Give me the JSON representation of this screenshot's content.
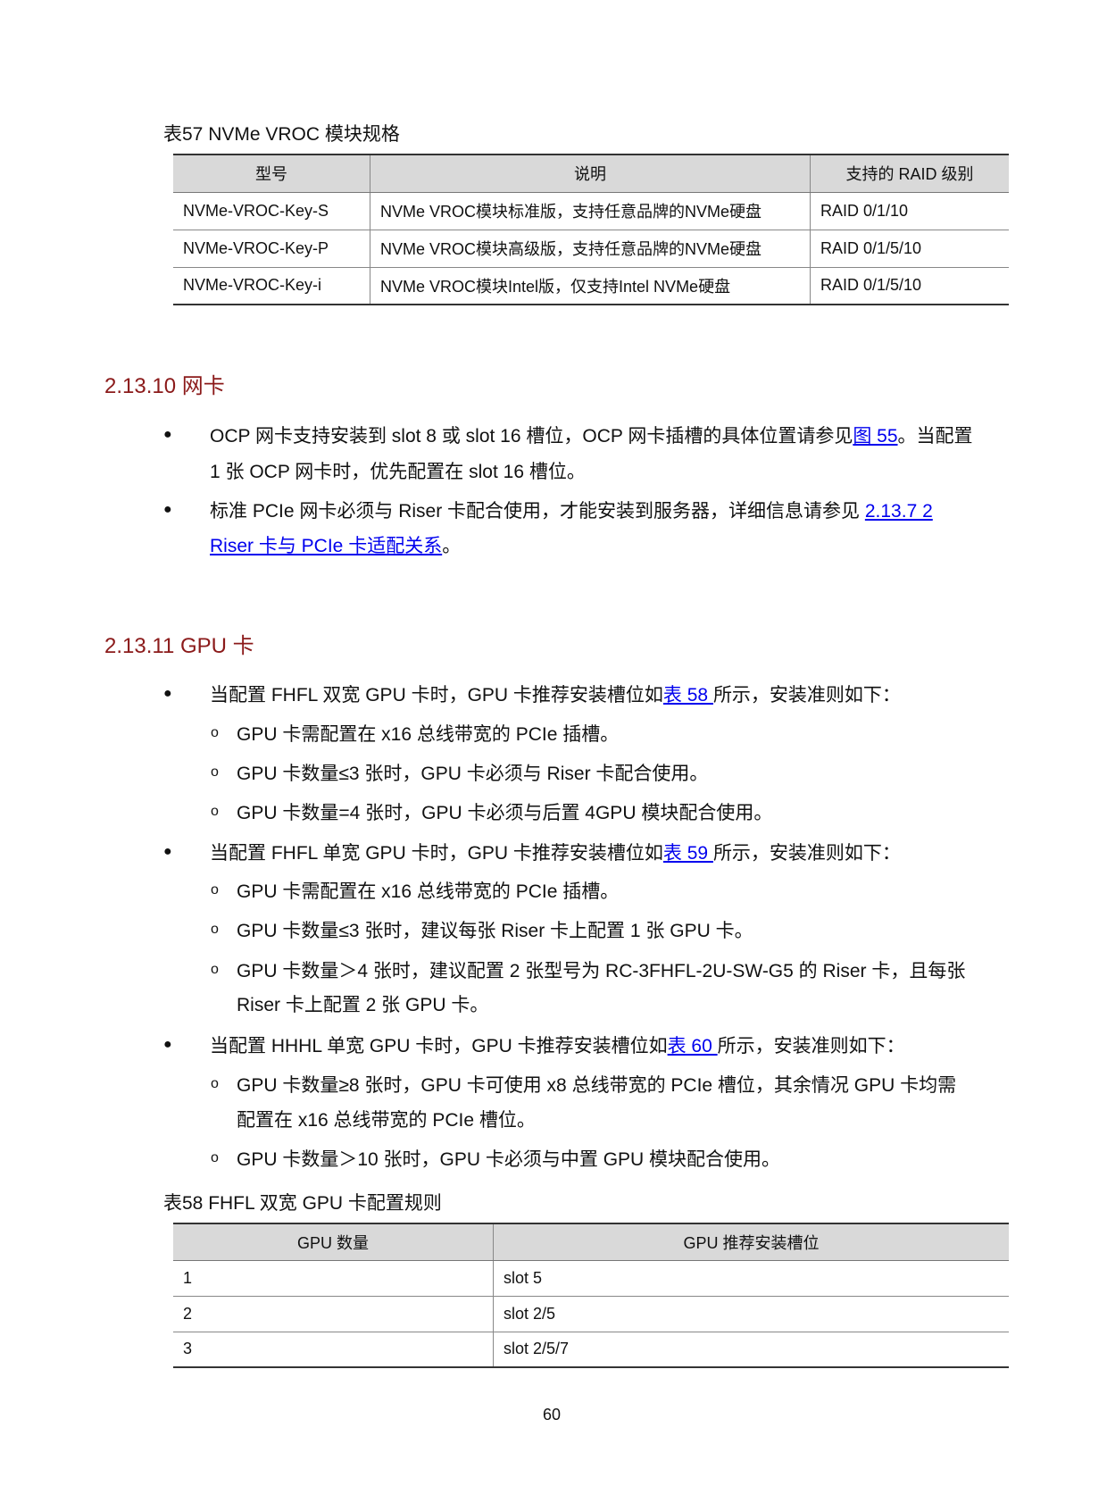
{
  "table57": {
    "caption": "表57  NVMe VROC 模块规格",
    "headers": [
      "型号",
      "说明",
      "支持的 RAID 级别"
    ],
    "rows": [
      [
        "NVMe-VROC-Key-S",
        "NVMe VROC模块标准版，支持任意品牌的NVMe硬盘",
        "RAID 0/1/10"
      ],
      [
        "NVMe-VROC-Key-P",
        "NVMe VROC模块高级版，支持任意品牌的NVMe硬盘",
        "RAID 0/1/5/10"
      ],
      [
        "NVMe-VROC-Key-i",
        "NVMe VROC模块Intel版，仅支持Intel NVMe硬盘",
        "RAID 0/1/5/10"
      ]
    ]
  },
  "sec1": {
    "heading": "2.13.10  网卡",
    "b1": {
      "a": "OCP 网卡支持安装到 slot 8 或 slot 16 槽位，OCP 网卡插槽的具体位置请参见",
      "link": "图 55",
      "b": "。当配置",
      "c": "1 张 OCP 网卡时，优先配置在 slot 16 槽位。"
    },
    "b2": {
      "a": "标准 PCIe 网卡必须与 Riser 卡配合使用，才能安装到服务器，详细信息请参见 ",
      "link1": "2.13.7  2",
      "link2": "Riser 卡与 PCIe 卡适配关系",
      "b": "。"
    }
  },
  "sec2": {
    "heading": "2.13.11  GPU 卡",
    "b1": {
      "a": "当配置 FHFL 双宽 GPU 卡时，GPU 卡推荐安装槽位如",
      "link": "表 58 ",
      "b": "所示，安装准则如下：",
      "subs": [
        "GPU 卡需配置在 x16 总线带宽的 PCIe 插槽。",
        "GPU 卡数量≤3 张时，GPU 卡必须与 Riser 卡配合使用。",
        "GPU 卡数量=4 张时，GPU 卡必须与后置 4GPU 模块配合使用。"
      ]
    },
    "b2": {
      "a": "当配置 FHFL 单宽 GPU 卡时，GPU 卡推荐安装槽位如",
      "link": "表 59 ",
      "b": "所示，安装准则如下：",
      "subs": [
        "GPU 卡需配置在 x16 总线带宽的 PCIe 插槽。",
        "GPU 卡数量≤3 张时，建议每张 Riser 卡上配置 1 张 GPU 卡。",
        "GPU 卡数量＞4 张时，建议配置 2 张型号为 RC-3FHFL-2U-SW-G5 的 Riser 卡，且每张",
        "Riser 卡上配置 2 张 GPU 卡。"
      ]
    },
    "b3": {
      "a": "当配置 HHHL 单宽 GPU 卡时，GPU 卡推荐安装槽位如",
      "link": "表 60 ",
      "b": "所示，安装准则如下：",
      "subs": [
        "GPU 卡数量≥8 张时，GPU 卡可使用 x8 总线带宽的 PCIe 槽位，其余情况 GPU 卡均需",
        "配置在 x16 总线带宽的 PCIe 槽位。",
        "GPU 卡数量＞10 张时，GPU 卡必须与中置 GPU 模块配合使用。"
      ]
    }
  },
  "table58": {
    "caption": "表58  FHFL 双宽 GPU 卡配置规则",
    "headers": [
      "GPU 数量",
      "GPU 推荐安装槽位"
    ],
    "rows": [
      [
        "1",
        "slot 5"
      ],
      [
        "2",
        "slot 2/5"
      ],
      [
        "3",
        "slot 2/5/7"
      ]
    ]
  },
  "page_number": "60",
  "colors": {
    "heading": "#8b1a1a",
    "link": "#0000ee"
  }
}
